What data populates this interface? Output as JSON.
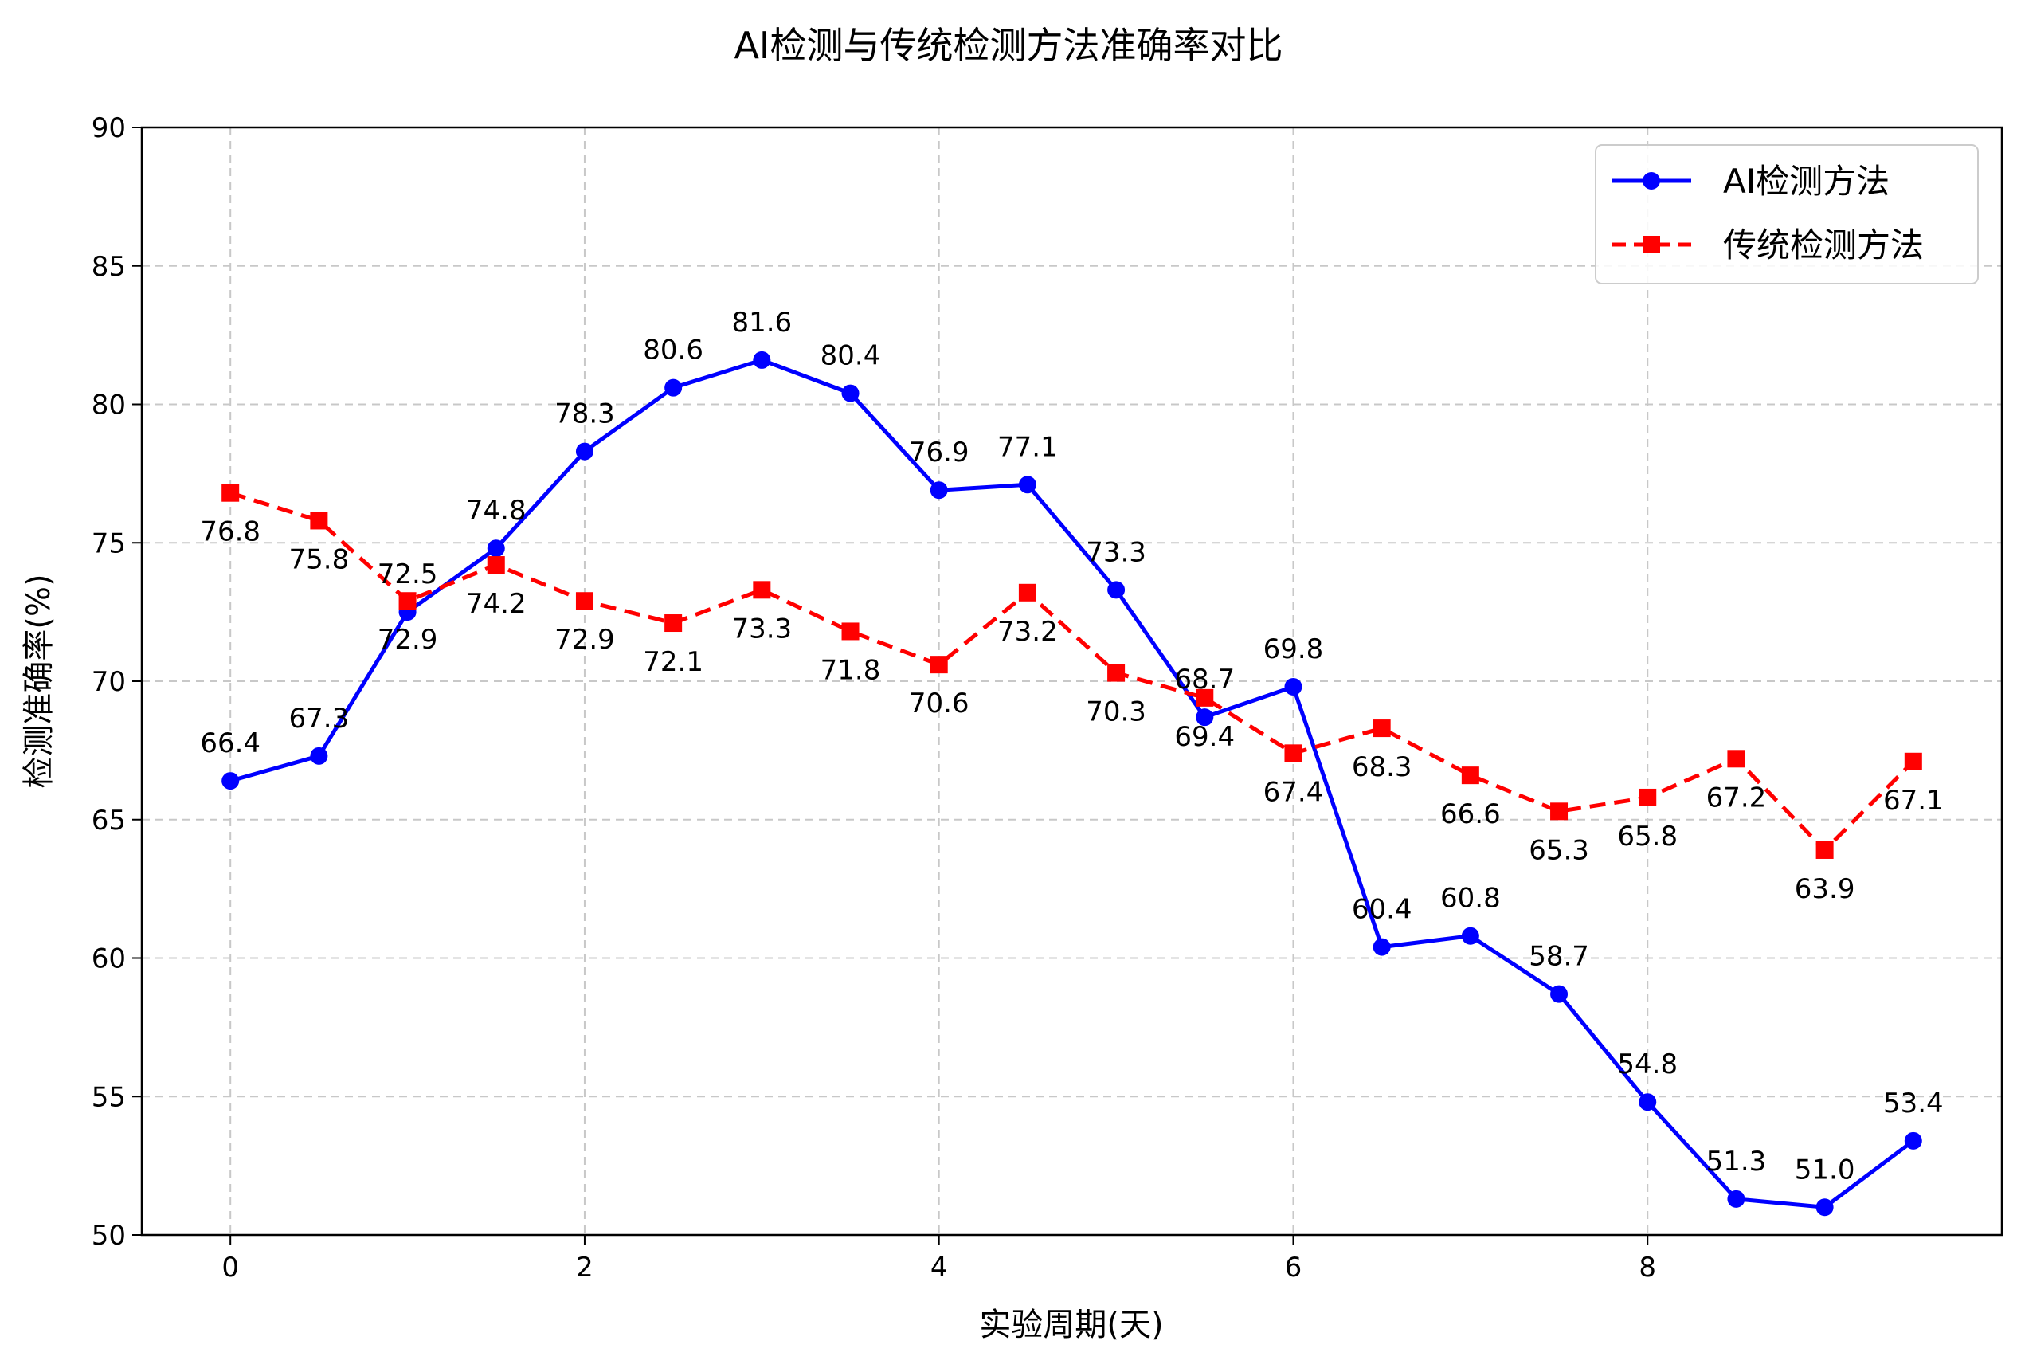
{
  "chart_data": {
    "type": "line",
    "title": "AI检测与传统检测方法准确率对比",
    "xlabel": "实验周期(天)",
    "ylabel": "检测准确率(%)",
    "xlim": [
      -0.5,
      10.0
    ],
    "ylim": [
      50,
      90
    ],
    "xticks": [
      0,
      2,
      4,
      6,
      8
    ],
    "yticks": [
      50,
      55,
      60,
      65,
      70,
      75,
      80,
      85,
      90
    ],
    "grid": true,
    "legend_position": "top-right",
    "x": [
      0,
      0.5,
      1,
      1.5,
      2,
      2.5,
      3,
      3.5,
      4,
      4.5,
      5,
      5.5,
      6,
      6.5,
      7,
      7.5,
      8,
      8.5,
      9,
      9.5
    ],
    "series": [
      {
        "name": "AI检测方法",
        "color": "#0000ff",
        "marker": "circle",
        "linestyle": "solid",
        "label_offset": "above",
        "values": [
          66.4,
          67.3,
          72.5,
          74.8,
          78.3,
          80.6,
          81.6,
          80.4,
          76.9,
          77.1,
          73.3,
          68.7,
          69.8,
          60.4,
          60.8,
          58.7,
          54.8,
          51.3,
          51.0,
          53.4
        ],
        "labels": [
          "66.4",
          "67.3",
          "72.5",
          "74.8",
          "78.3",
          "80.6",
          "81.6",
          "80.4",
          "76.9",
          "77.1",
          "73.3",
          "68.7",
          "69.8",
          "60.4",
          "60.8",
          "58.7",
          "54.8",
          "51.3",
          "51.0",
          "53.4"
        ]
      },
      {
        "name": "传统检测方法",
        "color": "#ff0000",
        "marker": "square",
        "linestyle": "dashed",
        "label_offset": "below",
        "values": [
          76.8,
          75.8,
          72.9,
          74.2,
          72.9,
          72.1,
          73.3,
          71.8,
          70.6,
          73.2,
          70.3,
          69.4,
          67.4,
          68.3,
          66.6,
          65.3,
          65.8,
          67.2,
          63.9,
          67.1
        ],
        "labels": [
          "76.8",
          "75.8",
          "72.9",
          "74.2",
          "72.9",
          "72.1",
          "73.3",
          "71.8",
          "70.6",
          "73.2",
          "70.3",
          "69.4",
          "67.4",
          "68.3",
          "66.6",
          "65.3",
          "65.8",
          "67.2",
          "63.9",
          "67.1"
        ]
      }
    ]
  }
}
